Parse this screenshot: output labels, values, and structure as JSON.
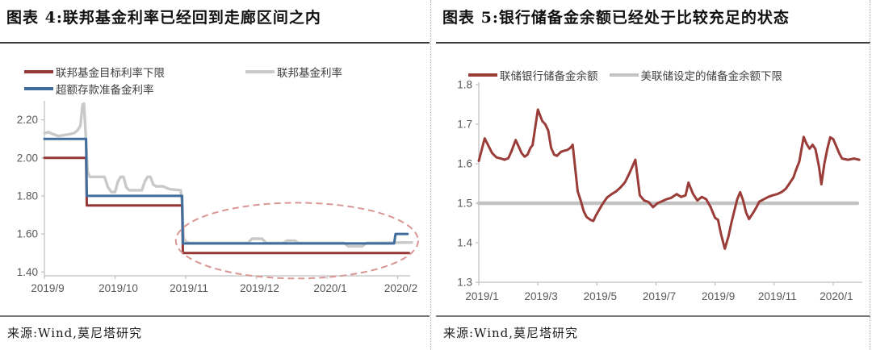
{
  "panels": [
    {
      "title": "图表 4:联邦基金利率已经回到走廊区间之内",
      "source": "来源:Wind,莫尼塔研究"
    },
    {
      "title": "图表 5:银行储备金余额已经处于比较充足的状态",
      "source": "来源:Wind,莫尼塔研究"
    }
  ],
  "colors": {
    "dark_red": "#943735",
    "steel_blue": "#3F6D9E",
    "light_gray_line": "#C9C9C9",
    "reserve_floor_gray": "#C3C3C3",
    "axis_gray": "#BFBFBF",
    "tick_label_gray": "#595959",
    "ellipse_pink": "#D99694"
  },
  "chart_data": [
    {
      "type": "line",
      "title": "图表 4:联邦基金利率已经回到走廊区间之内",
      "xlabel": "",
      "ylabel": "",
      "x_unit": "months since 2019/9",
      "xlim": [
        0,
        5.2
      ],
      "ylim": [
        1.38,
        2.3
      ],
      "grid": false,
      "legend_position": "top",
      "x_ticks": [
        {
          "m": 0,
          "label": "2019/9"
        },
        {
          "m": 1,
          "label": "2019/10"
        },
        {
          "m": 2,
          "label": "2019/11"
        },
        {
          "m": 3,
          "label": "2019/12"
        },
        {
          "m": 4,
          "label": "2020/1"
        },
        {
          "m": 5,
          "label": "2020/2"
        }
      ],
      "y_ticks": [
        {
          "v": 1.4,
          "label": "1.40"
        },
        {
          "v": 1.6,
          "label": "1.60"
        },
        {
          "v": 1.8,
          "label": "1.80"
        },
        {
          "v": 2.0,
          "label": "2.00"
        },
        {
          "v": 2.2,
          "label": "2.20"
        }
      ],
      "series": [
        {
          "name": "联邦基金利率",
          "color": "#C9C9C9",
          "width": 3.4,
          "points": [
            [
              0,
              2.13
            ],
            [
              0.06,
              2.135
            ],
            [
              0.12,
              2.125
            ],
            [
              0.2,
              2.115
            ],
            [
              0.28,
              2.12
            ],
            [
              0.36,
              2.125
            ],
            [
              0.42,
              2.13
            ],
            [
              0.47,
              2.145
            ],
            [
              0.51,
              2.17
            ],
            [
              0.54,
              2.28
            ],
            [
              0.56,
              2.285
            ],
            [
              0.58,
              2.15
            ],
            [
              0.61,
              1.93
            ],
            [
              0.64,
              1.9
            ],
            [
              0.85,
              1.9
            ],
            [
              0.9,
              1.845
            ],
            [
              0.95,
              1.82
            ],
            [
              1.0,
              1.82
            ],
            [
              1.04,
              1.875
            ],
            [
              1.08,
              1.9
            ],
            [
              1.12,
              1.9
            ],
            [
              1.16,
              1.845
            ],
            [
              1.2,
              1.83
            ],
            [
              1.38,
              1.83
            ],
            [
              1.42,
              1.875
            ],
            [
              1.46,
              1.9
            ],
            [
              1.5,
              1.9
            ],
            [
              1.54,
              1.86
            ],
            [
              1.58,
              1.85
            ],
            [
              1.68,
              1.85
            ],
            [
              1.74,
              1.84
            ],
            [
              1.78,
              1.835
            ],
            [
              1.93,
              1.83
            ],
            [
              1.95,
              1.75
            ],
            [
              1.97,
              1.58
            ],
            [
              2.0,
              1.56
            ],
            [
              2.05,
              1.553
            ],
            [
              2.88,
              1.553
            ],
            [
              2.94,
              1.575
            ],
            [
              3.08,
              1.575
            ],
            [
              3.14,
              1.553
            ],
            [
              3.38,
              1.553
            ],
            [
              3.44,
              1.565
            ],
            [
              3.54,
              1.565
            ],
            [
              3.6,
              1.553
            ],
            [
              4.24,
              1.553
            ],
            [
              4.3,
              1.535
            ],
            [
              4.5,
              1.535
            ],
            [
              4.56,
              1.553
            ],
            [
              5.2,
              1.555
            ]
          ]
        },
        {
          "name": "联邦基金目标利率下限",
          "color": "#943735",
          "width": 3,
          "points": [
            [
              0,
              2.0
            ],
            [
              0.59,
              2.0
            ],
            [
              0.6,
              1.75
            ],
            [
              1.95,
              1.75
            ],
            [
              1.96,
              1.5
            ],
            [
              5.16,
              1.5
            ]
          ]
        },
        {
          "name": "超额存款准备金利率",
          "color": "#3F6D9E",
          "width": 3,
          "points": [
            [
              0,
              2.1
            ],
            [
              0.59,
              2.1
            ],
            [
              0.6,
              1.8
            ],
            [
              1.95,
              1.8
            ],
            [
              1.96,
              1.55
            ],
            [
              4.95,
              1.55
            ],
            [
              4.97,
              1.6
            ],
            [
              5.14,
              1.6
            ]
          ]
        }
      ],
      "annotations": [
        {
          "type": "ellipse",
          "color": "#D99694",
          "cx_m": 3.575,
          "cy_v": 1.565,
          "rx_m": 1.715,
          "ry_v": 0.199,
          "dash": "8 5",
          "width": 2
        }
      ]
    },
    {
      "type": "line",
      "title": "图表 5:银行储备金余额已经处于比较充足的状态",
      "xlabel": "",
      "ylabel": "",
      "x_unit": "months since 2019/1",
      "xlim": [
        0,
        12.9
      ],
      "ylim": [
        1.3,
        1.8
      ],
      "grid": false,
      "legend_position": "top",
      "x_ticks": [
        {
          "m": 0,
          "label": "2019/1"
        },
        {
          "m": 2,
          "label": "2019/3"
        },
        {
          "m": 4,
          "label": "2019/5"
        },
        {
          "m": 6,
          "label": "2019/7"
        },
        {
          "m": 8,
          "label": "2019/9"
        },
        {
          "m": 10,
          "label": "2019/11"
        },
        {
          "m": 12,
          "label": "2020/1"
        }
      ],
      "y_ticks": [
        {
          "v": 1.3,
          "label": "1.3"
        },
        {
          "v": 1.4,
          "label": "1.4"
        },
        {
          "v": 1.5,
          "label": "1.5"
        },
        {
          "v": 1.6,
          "label": "1.6"
        },
        {
          "v": 1.7,
          "label": "1.7"
        },
        {
          "v": 1.8,
          "label": "1.8"
        }
      ],
      "series": [
        {
          "name": "美联储设定的储备金余额下限",
          "color": "#C3C3C3",
          "width": 4.5,
          "points": [
            [
              0,
              1.5
            ],
            [
              12.82,
              1.5
            ]
          ]
        },
        {
          "name": "联储银行储备金余额",
          "color": "#9A3C38",
          "width": 3,
          "points": [
            [
              0,
              1.607
            ],
            [
              0.2,
              1.664
            ],
            [
              0.45,
              1.627
            ],
            [
              0.6,
              1.616
            ],
            [
              0.75,
              1.613
            ],
            [
              0.87,
              1.61
            ],
            [
              1.0,
              1.614
            ],
            [
              1.1,
              1.63
            ],
            [
              1.25,
              1.66
            ],
            [
              1.45,
              1.627
            ],
            [
              1.55,
              1.618
            ],
            [
              1.65,
              1.623
            ],
            [
              1.75,
              1.64
            ],
            [
              1.82,
              1.647
            ],
            [
              2.0,
              1.737
            ],
            [
              2.15,
              1.708
            ],
            [
              2.25,
              1.7
            ],
            [
              2.35,
              1.684
            ],
            [
              2.45,
              1.64
            ],
            [
              2.55,
              1.623
            ],
            [
              2.65,
              1.62
            ],
            [
              2.78,
              1.63
            ],
            [
              2.9,
              1.633
            ],
            [
              3.0,
              1.635
            ],
            [
              3.1,
              1.64
            ],
            [
              3.18,
              1.648
            ],
            [
              3.35,
              1.53
            ],
            [
              3.45,
              1.507
            ],
            [
              3.55,
              1.48
            ],
            [
              3.65,
              1.465
            ],
            [
              3.78,
              1.458
            ],
            [
              3.88,
              1.455
            ],
            [
              3.95,
              1.467
            ],
            [
              4.05,
              1.48
            ],
            [
              4.15,
              1.493
            ],
            [
              4.25,
              1.505
            ],
            [
              4.35,
              1.515
            ],
            [
              4.5,
              1.523
            ],
            [
              4.65,
              1.53
            ],
            [
              4.8,
              1.54
            ],
            [
              4.95,
              1.553
            ],
            [
              5.1,
              1.576
            ],
            [
              5.3,
              1.61
            ],
            [
              5.45,
              1.52
            ],
            [
              5.6,
              1.507
            ],
            [
              5.75,
              1.503
            ],
            [
              5.9,
              1.49
            ],
            [
              6.05,
              1.5
            ],
            [
              6.2,
              1.505
            ],
            [
              6.35,
              1.51
            ],
            [
              6.5,
              1.513
            ],
            [
              6.7,
              1.523
            ],
            [
              6.85,
              1.516
            ],
            [
              7.0,
              1.52
            ],
            [
              7.1,
              1.552
            ],
            [
              7.25,
              1.524
            ],
            [
              7.4,
              1.507
            ],
            [
              7.55,
              1.516
            ],
            [
              7.7,
              1.51
            ],
            [
              7.85,
              1.49
            ],
            [
              8.0,
              1.463
            ],
            [
              8.1,
              1.458
            ],
            [
              8.2,
              1.422
            ],
            [
              8.33,
              1.385
            ],
            [
              8.45,
              1.415
            ],
            [
              8.55,
              1.45
            ],
            [
              8.65,
              1.48
            ],
            [
              8.75,
              1.51
            ],
            [
              8.85,
              1.528
            ],
            [
              8.95,
              1.507
            ],
            [
              9.05,
              1.477
            ],
            [
              9.15,
              1.46
            ],
            [
              9.3,
              1.477
            ],
            [
              9.4,
              1.49
            ],
            [
              9.5,
              1.504
            ],
            [
              9.65,
              1.51
            ],
            [
              9.8,
              1.516
            ],
            [
              9.95,
              1.52
            ],
            [
              10.1,
              1.523
            ],
            [
              10.25,
              1.528
            ],
            [
              10.4,
              1.537
            ],
            [
              10.5,
              1.548
            ],
            [
              10.65,
              1.565
            ],
            [
              10.75,
              1.586
            ],
            [
              10.85,
              1.605
            ],
            [
              11.0,
              1.668
            ],
            [
              11.1,
              1.65
            ],
            [
              11.2,
              1.638
            ],
            [
              11.3,
              1.648
            ],
            [
              11.4,
              1.637
            ],
            [
              11.52,
              1.592
            ],
            [
              11.6,
              1.548
            ],
            [
              11.7,
              1.6
            ],
            [
              11.8,
              1.637
            ],
            [
              11.9,
              1.667
            ],
            [
              12.0,
              1.662
            ],
            [
              12.1,
              1.645
            ],
            [
              12.2,
              1.627
            ],
            [
              12.3,
              1.613
            ],
            [
              12.5,
              1.61
            ],
            [
              12.7,
              1.613
            ],
            [
              12.88,
              1.61
            ]
          ]
        }
      ],
      "annotations": []
    }
  ]
}
